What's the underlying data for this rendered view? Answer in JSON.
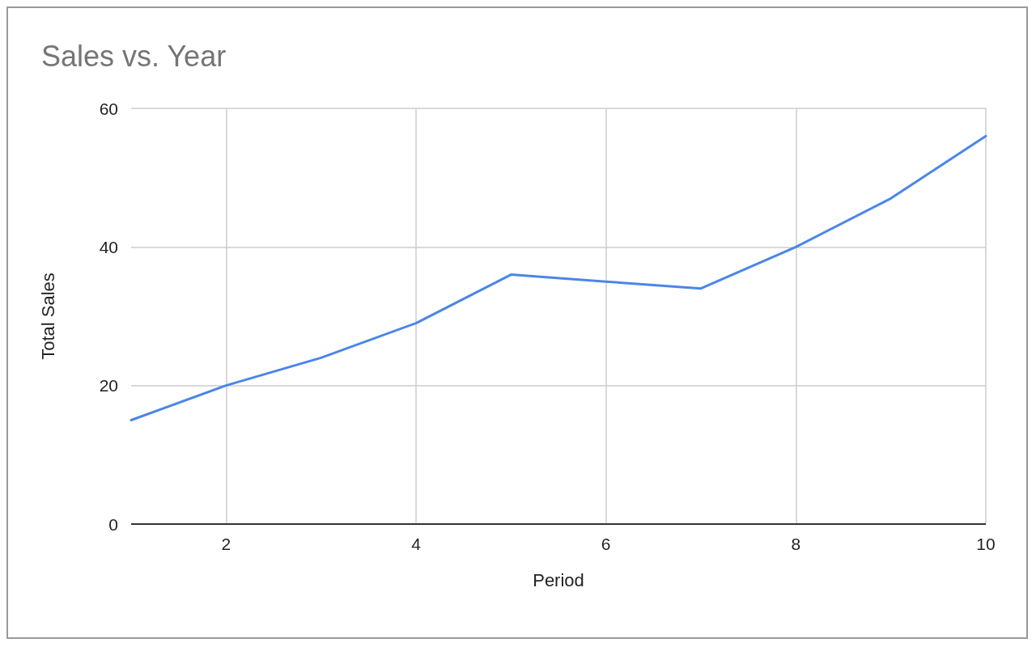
{
  "chart_data": {
    "type": "line",
    "title": "Sales vs. Year",
    "xlabel": "Period",
    "ylabel": "Total Sales",
    "x": [
      1,
      2,
      3,
      4,
      5,
      6,
      7,
      8,
      9,
      10
    ],
    "series": [
      {
        "color": "#4a86e8",
        "values": [
          15,
          20,
          24,
          29,
          36,
          35,
          34,
          40,
          47,
          56
        ]
      }
    ],
    "xlim": [
      1,
      10
    ],
    "xticks": [
      2,
      4,
      6,
      8,
      10
    ],
    "ylim": [
      0,
      60
    ],
    "yticks": [
      0,
      20,
      40,
      60
    ],
    "grid": true,
    "marker": "none",
    "line_style": "solid"
  }
}
